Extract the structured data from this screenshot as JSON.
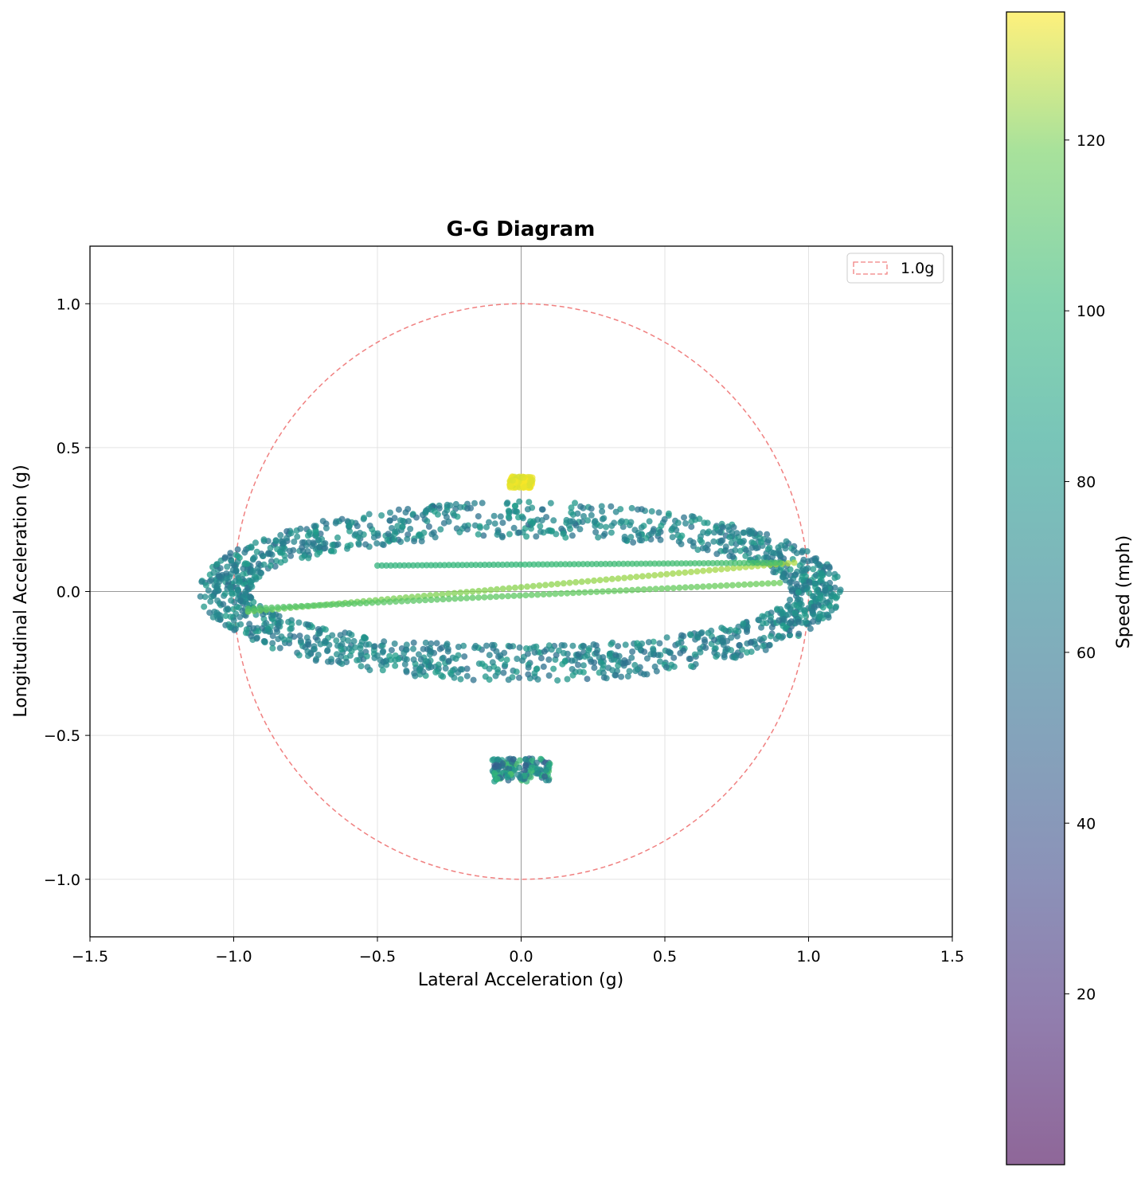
{
  "chart_data": {
    "type": "scatter",
    "title": "G-G Diagram",
    "xlabel": "Lateral Acceleration (g)",
    "ylabel": "Longitudinal Acceleration (g)",
    "xlim": [
      -1.5,
      1.5
    ],
    "ylim": [
      -1.2,
      1.2
    ],
    "xticks": [
      "−1.5",
      "−1.0",
      "−0.5",
      "0.0",
      "0.5",
      "1.0",
      "1.5"
    ],
    "yticks": [
      "−1.0",
      "−0.5",
      "0.0",
      "0.5",
      "1.0"
    ],
    "grid": true,
    "reference_circle": {
      "label": "1.0g",
      "radius": 1.0,
      "color": "#f08080",
      "style": "dashed"
    },
    "legend": {
      "placement": "top-right",
      "entries": [
        "1.0g"
      ]
    },
    "colorbar": {
      "label": "Speed (mph)",
      "min": 0,
      "max": 135,
      "ticks": [
        "20",
        "40",
        "60",
        "80",
        "100",
        "120"
      ],
      "colormap": "viridis",
      "alpha": 0.6
    },
    "clusters": [
      {
        "kind": "ring",
        "center": [
          0.0,
          0.0
        ],
        "rx": 1.03,
        "ry": 0.25,
        "thickness": 0.09,
        "speed_range": [
          55,
          85
        ]
      },
      {
        "kind": "line",
        "from": [
          -0.95,
          -0.07
        ],
        "to": [
          0.95,
          0.1
        ],
        "speed_range": [
          118,
          126
        ]
      },
      {
        "kind": "line",
        "from": [
          -0.95,
          -0.06
        ],
        "to": [
          0.9,
          0.03
        ],
        "speed_range": [
          110,
          118
        ]
      },
      {
        "kind": "line",
        "from": [
          -0.5,
          0.09
        ],
        "to": [
          0.9,
          0.1
        ],
        "speed_range": [
          98,
          108
        ]
      },
      {
        "kind": "rectangle",
        "x": [
          -0.04,
          0.04
        ],
        "y": [
          0.36,
          0.4
        ],
        "speed_range": [
          130,
          135
        ]
      },
      {
        "kind": "rectangle",
        "x": [
          -0.1,
          0.1
        ],
        "y": [
          -0.66,
          -0.58
        ],
        "speed_range": [
          45,
          110
        ]
      }
    ]
  }
}
